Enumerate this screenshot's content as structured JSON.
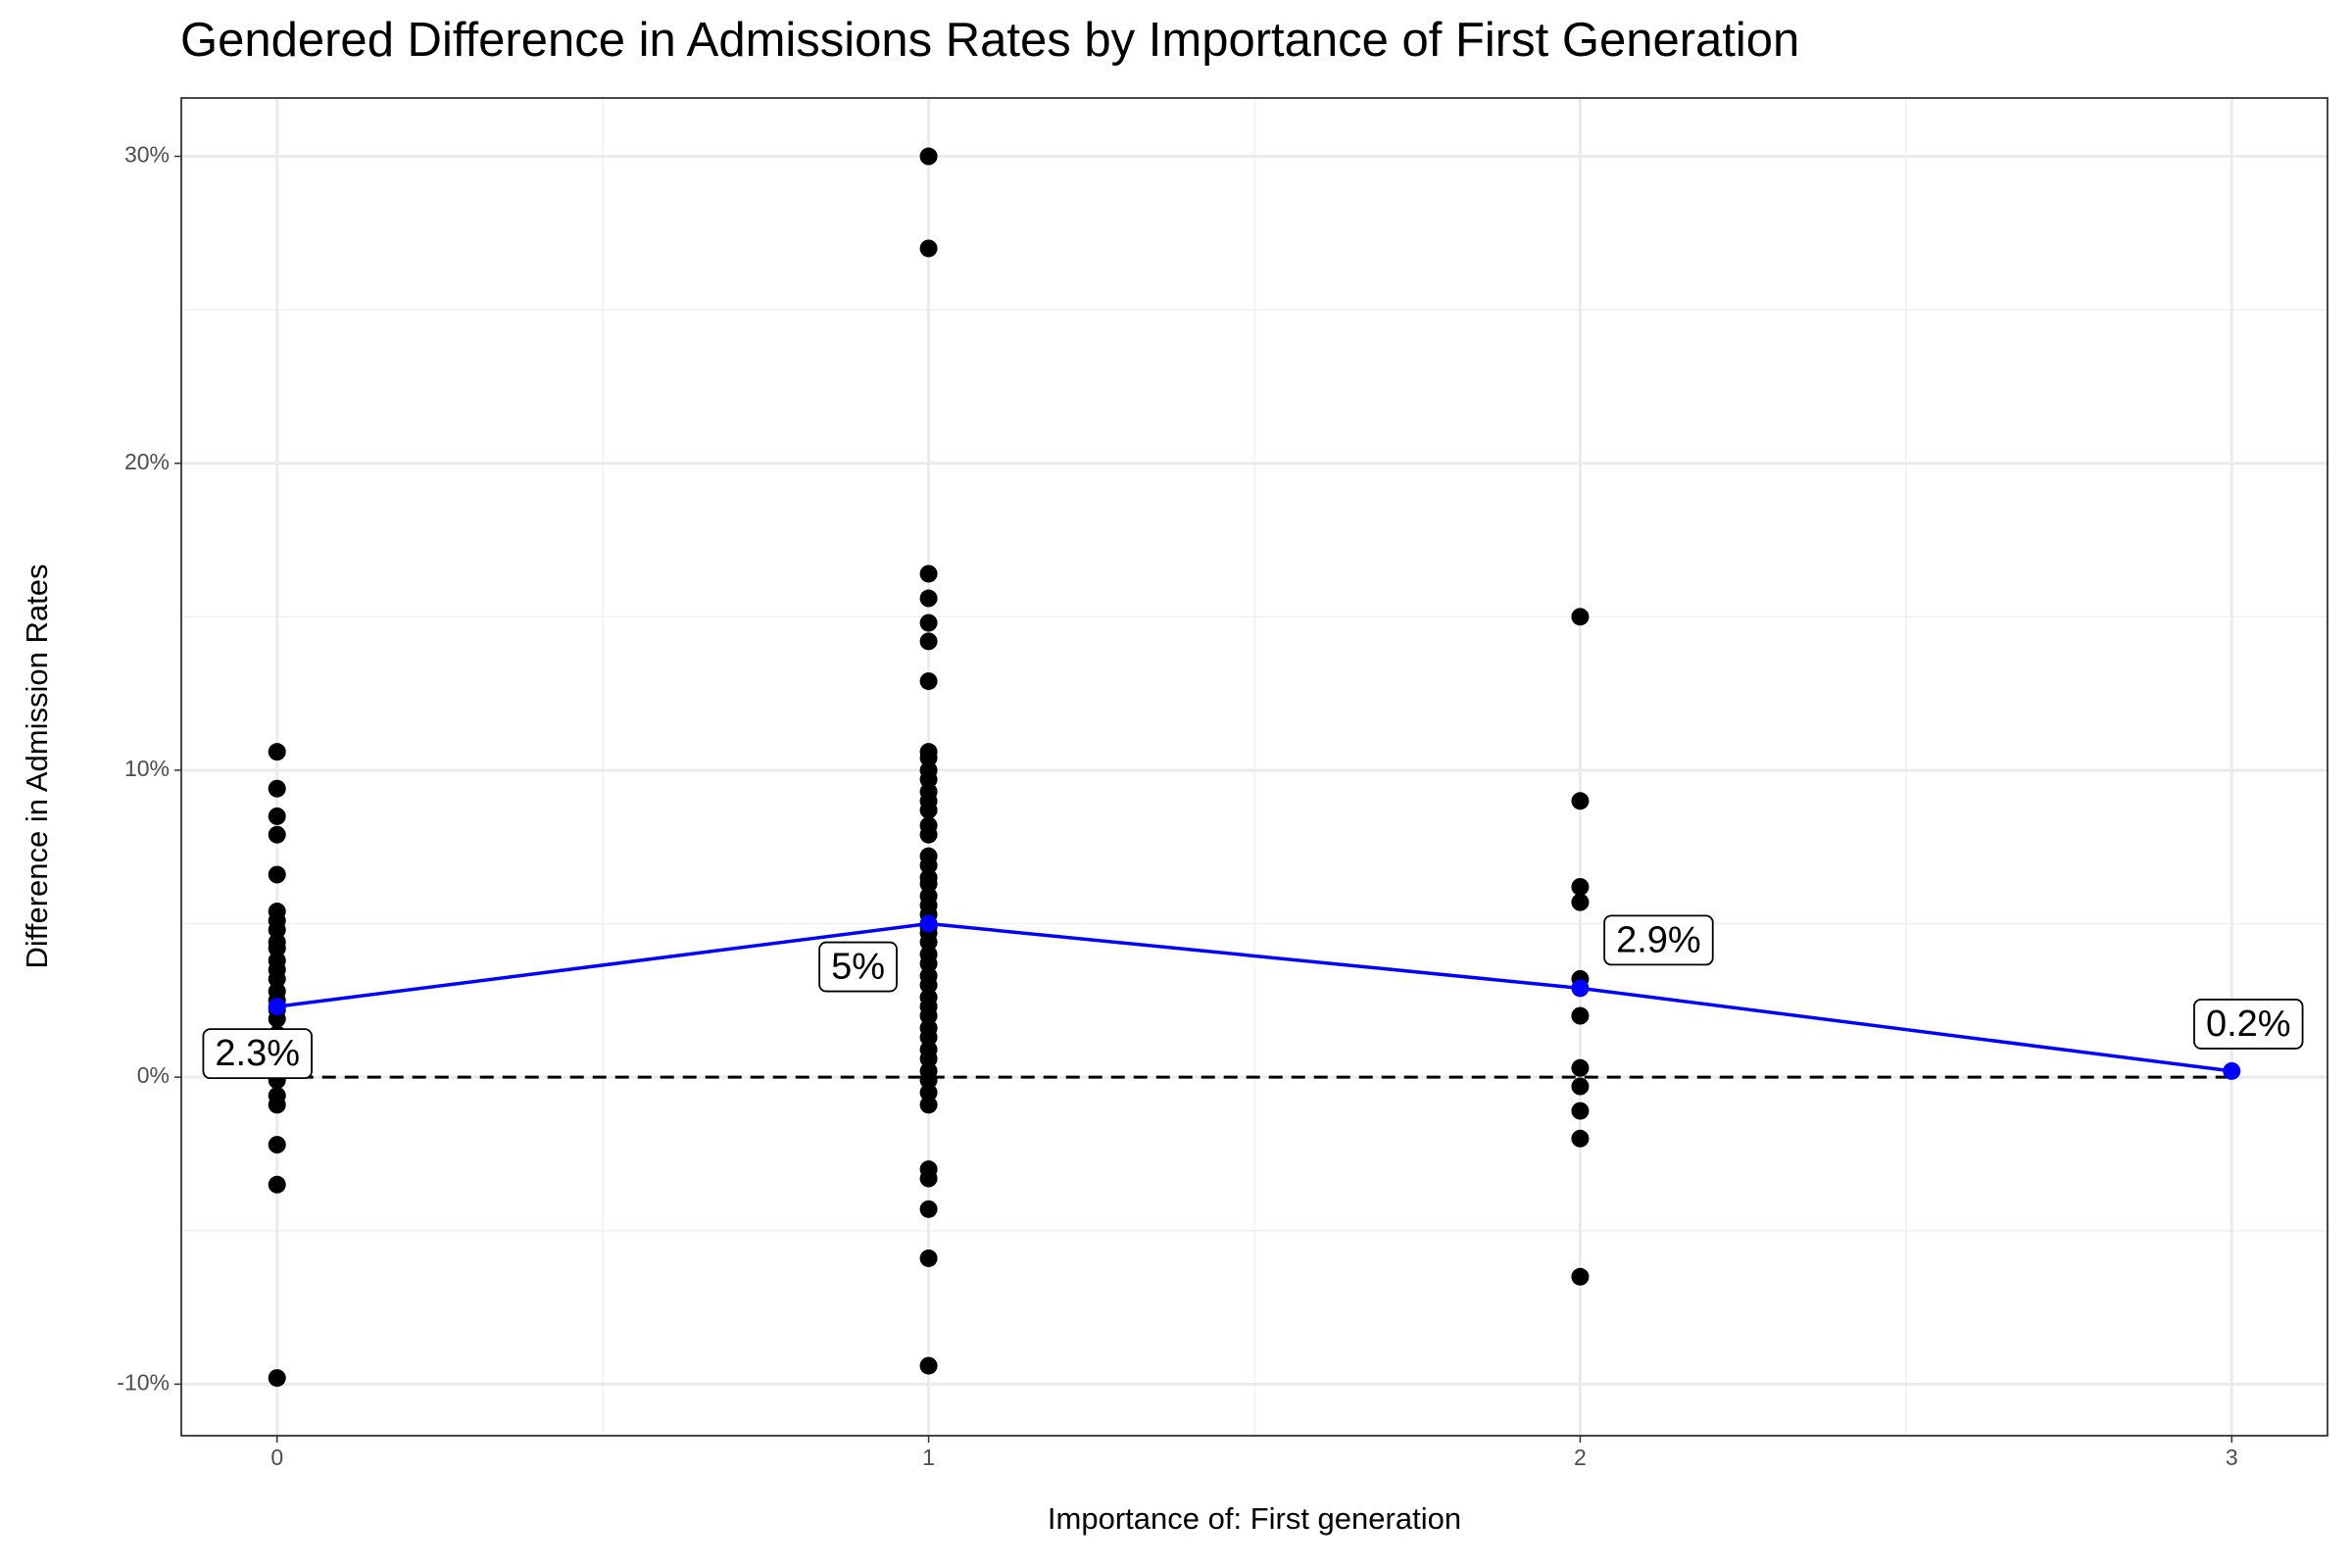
{
  "chart_data": {
    "type": "scatter",
    "title": "Gendered Difference in Admissions Rates by Importance of First Generation",
    "x_label": "Importance of: First generation",
    "y_label": "Difference in Admission Rates",
    "xlim": [
      -0.147,
      3.147
    ],
    "xticks": [
      0,
      1,
      2,
      3
    ],
    "ylim": [
      -11.68,
      31.9
    ],
    "yticks": [
      {
        "value": -10,
        "label": "-10%"
      },
      {
        "value": 0,
        "label": "0%"
      },
      {
        "value": 10,
        "label": "10%"
      },
      {
        "value": 20,
        "label": "20%"
      },
      {
        "value": 30,
        "label": "30%"
      }
    ],
    "grid": true,
    "reference_line": 0,
    "series": [
      {
        "color": "#000000",
        "x": [
          0,
          0,
          0,
          0,
          0,
          0,
          0,
          0,
          0,
          0,
          0,
          0,
          0,
          0,
          0,
          0,
          0,
          0,
          0,
          0,
          0,
          0,
          0,
          0,
          0,
          0,
          1,
          1,
          1,
          1,
          1,
          1,
          1,
          1,
          1,
          1,
          1,
          1,
          1,
          1,
          1,
          1,
          1,
          1,
          1,
          1,
          1,
          1,
          1,
          1,
          1,
          1,
          1,
          1,
          1,
          1,
          1,
          1,
          1,
          1,
          1,
          1,
          1,
          1,
          1,
          1,
          1,
          1,
          1,
          1,
          1,
          1,
          2,
          2,
          2,
          2,
          2,
          2,
          2,
          2,
          2,
          2,
          2
        ],
        "y": [
          10.6,
          9.4,
          8.5,
          7.9,
          6.6,
          5.4,
          5.1,
          4.8,
          4.4,
          4.2,
          3.8,
          3.5,
          3.2,
          2.8,
          2.5,
          2.2,
          1.9,
          1.4,
          0.9,
          0.4,
          -0.1,
          -0.6,
          -0.9,
          -2.2,
          -3.5,
          -9.8,
          30,
          27,
          16.4,
          15.6,
          14.8,
          14.2,
          12.9,
          10.6,
          10.4,
          10.0,
          9.7,
          9.3,
          9.0,
          8.7,
          8.2,
          7.9,
          7.2,
          6.9,
          6.5,
          6.3,
          5.9,
          5.6,
          5.3,
          4.9,
          4.7,
          4.4,
          4.0,
          3.7,
          3.3,
          3.0,
          2.6,
          2.3,
          2.0,
          1.6,
          1.3,
          0.9,
          0.6,
          0.2,
          -0.1,
          -0.5,
          -0.9,
          -3.0,
          -3.3,
          -4.3,
          -5.9,
          -9.4,
          15.0,
          9.0,
          6.2,
          5.7,
          3.2,
          2.0,
          0.3,
          -0.3,
          -1.1,
          -2.0,
          -6.5
        ]
      },
      {
        "color": "#0000ff",
        "line": true,
        "x": [
          0,
          1,
          2,
          3
        ],
        "y": [
          2.3,
          5,
          2.9,
          0.2
        ],
        "value_labels": [
          "2.3%",
          "5%",
          "2.9%",
          "0.2%"
        ]
      }
    ]
  }
}
